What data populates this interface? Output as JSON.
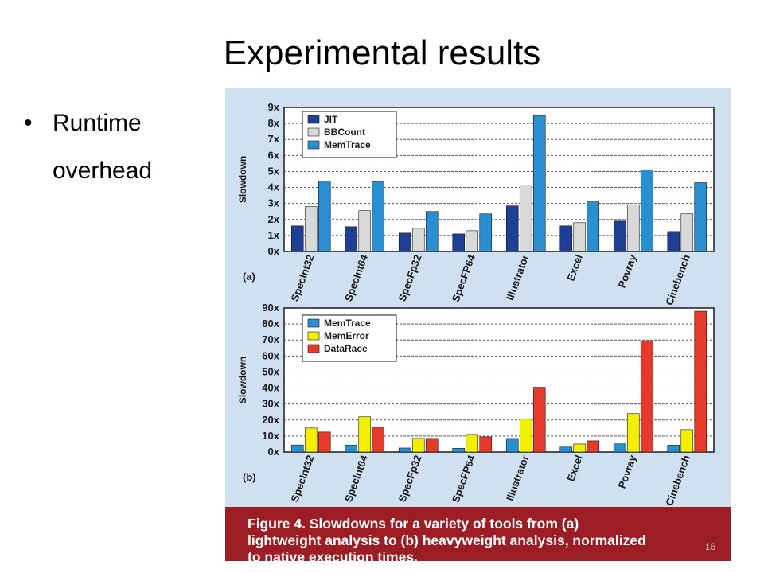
{
  "slide": {
    "title": "Experimental results",
    "bullet": {
      "line1": "Runtime",
      "line2": "overhead"
    },
    "page_number": "16"
  },
  "figure": {
    "caption": "Figure 4. Slowdowns for a variety of tools from (a)\nlightweight analysis to (b) heavyweight analysis, normalized\nto native execution times."
  },
  "colors": {
    "panel_bg": "#cfe0f1",
    "caption_bg": "#9c1d24",
    "JIT": "#1f3f94",
    "BBCount": "#d9d9d9",
    "MemTrace": "#2a8fd0",
    "MemError": "#f2f000",
    "DataRace": "#e63a2c"
  },
  "chart_data": [
    {
      "type": "bar",
      "panel_label": "(a)",
      "ylabel": "Slowdown",
      "ylim": [
        0,
        9
      ],
      "yticks": [
        "0x",
        "1x",
        "2x",
        "3x",
        "4x",
        "5x",
        "6x",
        "7x",
        "8x",
        "9x"
      ],
      "grid": true,
      "legend_position": "top-left",
      "categories": [
        "SpecInt32",
        "SpecInt64",
        "SpecFp32",
        "SpecFP64",
        "Illustrator",
        "Excel",
        "Povray",
        "Cinebench"
      ],
      "series": [
        {
          "name": "JIT",
          "values": [
            1.6,
            1.55,
            1.15,
            1.1,
            2.85,
            1.6,
            1.9,
            1.25
          ]
        },
        {
          "name": "BBCount",
          "values": [
            2.8,
            2.55,
            1.45,
            1.3,
            4.15,
            1.8,
            2.9,
            2.35
          ]
        },
        {
          "name": "MemTrace",
          "values": [
            4.4,
            4.35,
            2.5,
            2.35,
            8.5,
            3.1,
            5.1,
            4.3
          ]
        }
      ]
    },
    {
      "type": "bar",
      "panel_label": "(b)",
      "ylabel": "Slowdown",
      "ylim": [
        0,
        90
      ],
      "yticks": [
        "0x",
        "10x",
        "20x",
        "30x",
        "40x",
        "50x",
        "60x",
        "70x",
        "80x",
        "90x"
      ],
      "grid": true,
      "legend_position": "top-left",
      "categories": [
        "SpecInt32",
        "SpecInt64",
        "SpecFp32",
        "SpecFP64",
        "Illustrator",
        "Excel",
        "Povray",
        "Cinebench"
      ],
      "series": [
        {
          "name": "MemTrace",
          "values": [
            4.4,
            4.35,
            2.5,
            2.35,
            8.5,
            3.1,
            5.1,
            4.3
          ]
        },
        {
          "name": "MemError",
          "values": [
            15,
            22,
            8.5,
            11,
            20.5,
            5,
            24,
            14
          ]
        },
        {
          "name": "DataRace",
          "values": [
            12.5,
            15.5,
            8.5,
            9.5,
            40.5,
            7,
            69.5,
            88
          ]
        }
      ]
    }
  ]
}
